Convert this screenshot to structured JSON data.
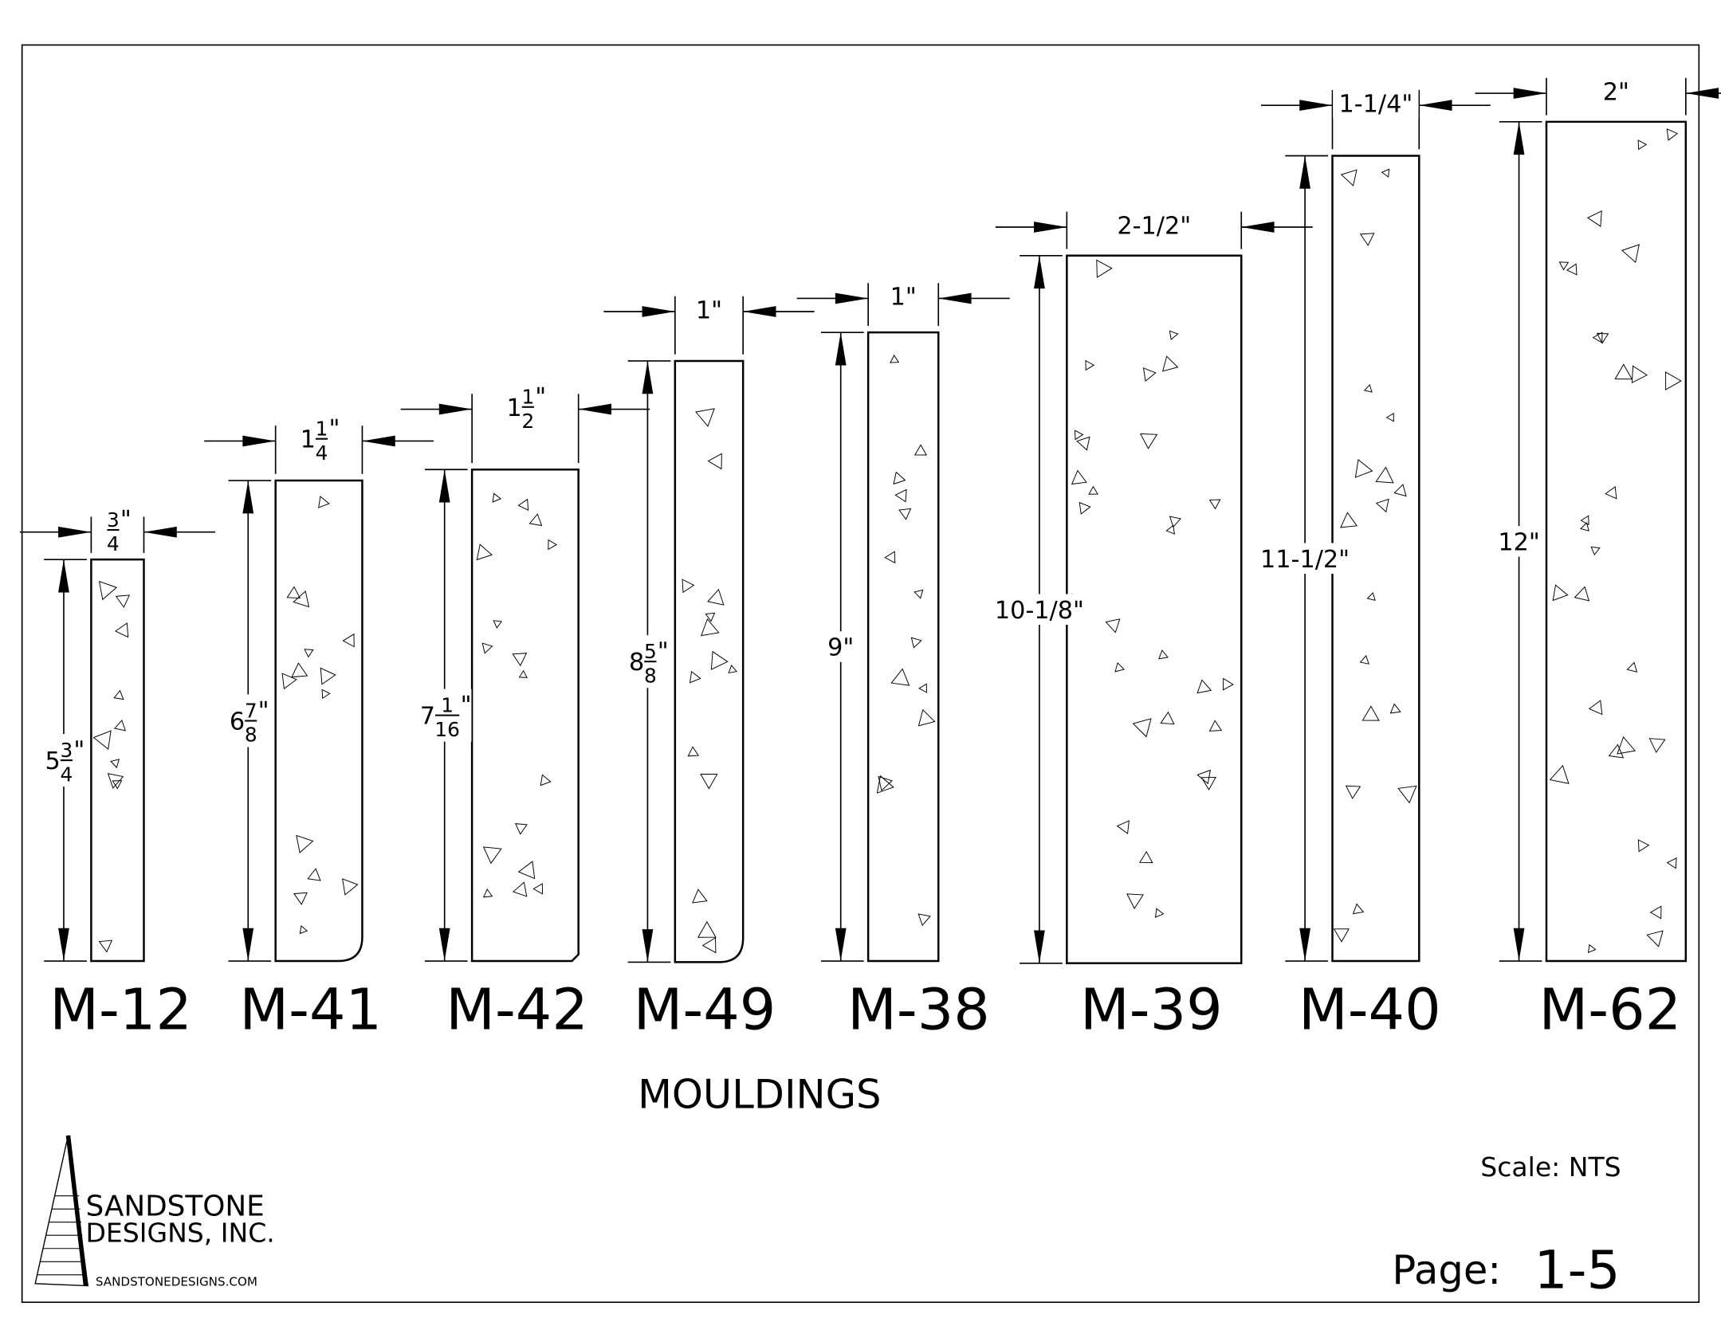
{
  "mouldings": [
    {
      "name": "M-12",
      "width": {
        "num": "3",
        "den": "4",
        "unit": "\""
      },
      "height": {
        "whole": "5",
        "num": "3",
        "den": "4",
        "unit": "\""
      }
    },
    {
      "name": "M-41",
      "width": {
        "whole": "1",
        "num": "1",
        "den": "4",
        "unit": "\""
      },
      "height": {
        "whole": "6",
        "num": "7",
        "den": "8",
        "unit": "\""
      }
    },
    {
      "name": "M-42",
      "width": {
        "whole": "1",
        "num": "1",
        "den": "2",
        "unit": "\""
      },
      "height": {
        "whole": "7",
        "num": "1",
        "den": "16",
        "unit": "\""
      }
    },
    {
      "name": "M-49",
      "width": {
        "text": "1\""
      },
      "height": {
        "whole": "8",
        "num": "5",
        "den": "8",
        "unit": "\""
      }
    },
    {
      "name": "M-38",
      "width": {
        "text": "1\""
      },
      "height": {
        "text": "9\""
      }
    },
    {
      "name": "M-39",
      "width": {
        "text": "2-1/2\""
      },
      "height": {
        "text": "10-1/8\""
      }
    },
    {
      "name": "M-40",
      "width": {
        "text": "1-1/4\""
      },
      "height": {
        "text": "11-1/2\""
      }
    },
    {
      "name": "M-62",
      "width": {
        "text": "2\""
      },
      "height": {
        "text": "12\""
      }
    }
  ],
  "title": "MOULDINGS",
  "logo": {
    "line1": "SANDSTONE",
    "line2": "DESIGNS, INC.",
    "url": "SANDSTONEDESIGNS.COM"
  },
  "scale": "Scale: NTS",
  "page": {
    "label": "Page:",
    "number": "1-5"
  }
}
